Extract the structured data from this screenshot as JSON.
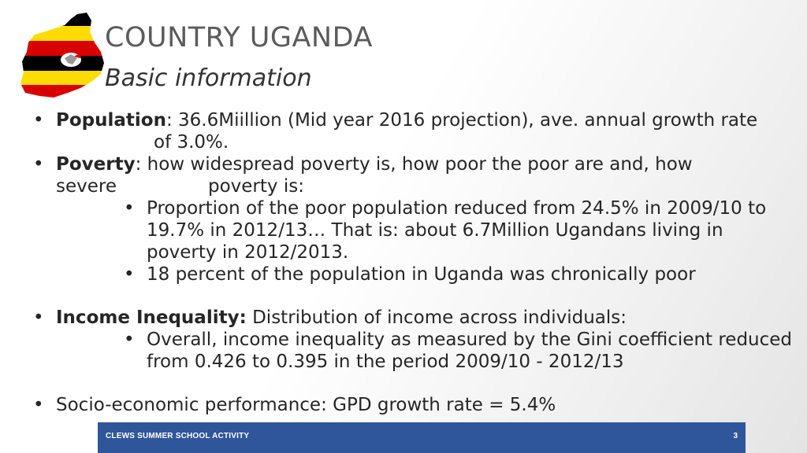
{
  "header": {
    "title": "COUNTRY UGANDA",
    "subtitle": "Basic information"
  },
  "logo": {
    "icon": "uganda-flag-map-icon",
    "colors": [
      "#000000",
      "#fcdc04",
      "#d90000"
    ]
  },
  "bullets": {
    "population": {
      "label": "Population",
      "text_line1": ": 36.6Miillion (Mid year 2016 projection), ave. annual growth rate",
      "text_line2": "of 3.0%."
    },
    "poverty": {
      "label": "Poverty",
      "text_line1": ": how widespread poverty is, how poor the poor are and, how",
      "text_line2a": "severe",
      "text_line2b": "poverty is:",
      "sub1": "Proportion of the poor population reduced from 24.5% in 2009/10 to 19.7% in 2012/13… That is: about 6.7Million Ugandans living in poverty in 2012/2013.",
      "sub2": "18 percent of the population in Uganda was chronically poor"
    },
    "inequality": {
      "label": "Income Inequality:",
      "text": " Distribution of income across individuals:",
      "sub1": "Overall, income inequality as measured by the Gini coefficient reduced from 0.426 to 0.395 in the period 2009/10 - 2012/13"
    },
    "socio": {
      "text": "Socio-economic performance: GPD growth rate = 5.4%"
    }
  },
  "footer": {
    "label": "CLEWS SUMMER SCHOOL ACTIVITY",
    "page_number": "3",
    "color": "#2f569a"
  }
}
